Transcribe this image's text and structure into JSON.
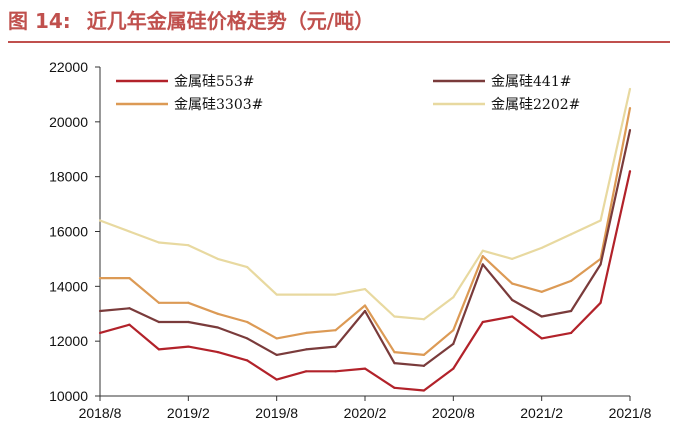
{
  "figure": {
    "label": "图 14:",
    "title": "近几年金属硅价格走势（元/吨）",
    "accent_color": "#c0504d"
  },
  "chart_data": {
    "type": "line",
    "title": "近几年金属硅价格走势（元/吨）",
    "xlabel": "",
    "ylabel": "",
    "ylim": [
      10000,
      22000
    ],
    "yticks": [
      "10000",
      "12000",
      "14000",
      "16000",
      "18000",
      "20000",
      "22000"
    ],
    "xticks": [
      "2018/8",
      "2019/2",
      "2019/8",
      "2020/2",
      "2020/8",
      "2021/2",
      "2021/8"
    ],
    "grid": false,
    "legend_position": "top",
    "x": [
      "2018/8",
      "2018/10",
      "2018/12",
      "2019/2",
      "2019/4",
      "2019/6",
      "2019/8",
      "2019/10",
      "2019/12",
      "2020/2",
      "2020/4",
      "2020/6",
      "2020/8",
      "2020/10",
      "2020/12",
      "2021/2",
      "2021/4",
      "2021/6",
      "2021/8"
    ],
    "series": [
      {
        "name": "金属硅553#",
        "color": "#b2222a",
        "values": [
          12300,
          12600,
          11700,
          11800,
          11600,
          11300,
          10600,
          10900,
          10900,
          11000,
          10300,
          10200,
          11000,
          12700,
          12900,
          12100,
          12300,
          13400,
          18200
        ]
      },
      {
        "name": "金属硅441#",
        "color": "#7a3b3b",
        "values": [
          13100,
          13200,
          12700,
          12700,
          12500,
          12100,
          11500,
          11700,
          11800,
          13100,
          11200,
          11100,
          11900,
          14800,
          13500,
          12900,
          13100,
          14800,
          19700
        ]
      },
      {
        "name": "金属硅3303#",
        "color": "#dc9a55",
        "values": [
          14300,
          14300,
          13400,
          13400,
          13000,
          12700,
          12100,
          12300,
          12400,
          13300,
          11600,
          11500,
          12400,
          15100,
          14100,
          13800,
          14200,
          15000,
          20500
        ]
      },
      {
        "name": "金属硅2202#",
        "color": "#e8d9a0",
        "values": [
          16400,
          16000,
          15600,
          15500,
          15000,
          14700,
          13700,
          13700,
          13700,
          13900,
          12900,
          12800,
          13600,
          15300,
          15000,
          15400,
          15900,
          16400,
          21200
        ]
      }
    ]
  }
}
